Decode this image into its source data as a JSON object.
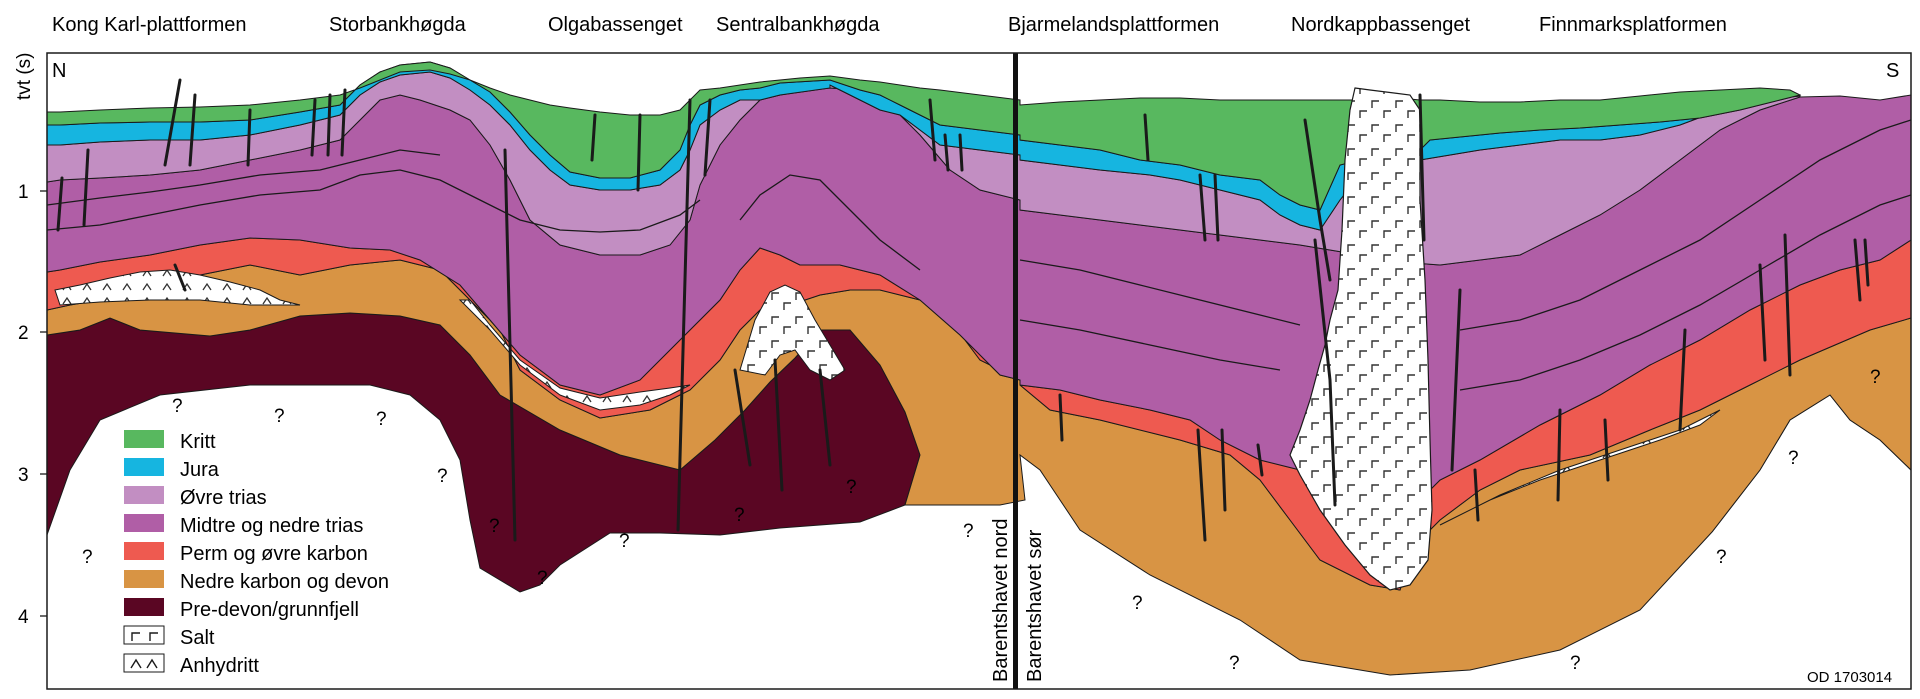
{
  "regions": [
    "Kong Karl-plattformen",
    "Storbankhøgda",
    "Olgabassenget",
    "Sentralbankhøgda",
    "Bjarmelandsplattformen",
    "Nordkappbassenget",
    "Finnmarksplatformen"
  ],
  "axis": {
    "label": "tvt (s)",
    "ticks": [
      "1",
      "2",
      "3",
      "4"
    ]
  },
  "compass": {
    "left": "N",
    "right": "S"
  },
  "divider_labels": [
    "Barentshavet nord",
    "Barentshavet sør"
  ],
  "legend": [
    {
      "label": "Kritt",
      "color": "#58b85f"
    },
    {
      "label": "Jura",
      "color": "#16b5e0"
    },
    {
      "label": "Øvre trias",
      "color": "#c28ec2"
    },
    {
      "label": "Midtre og nedre trias",
      "color": "#b05ea6"
    },
    {
      "label": "Perm og øvre karbon",
      "color": "#ee5a50"
    },
    {
      "label": "Nedre karbon og devon",
      "color": "#d89444"
    },
    {
      "label": "Pre-devon/grunnfjell",
      "color": "#5a0623"
    },
    {
      "label": "Salt",
      "color": "#ffffff"
    },
    {
      "label": "Anhydritt",
      "color": "#ffffff"
    }
  ],
  "unknown_marker": "?",
  "figure_id": "OD 1703014"
}
